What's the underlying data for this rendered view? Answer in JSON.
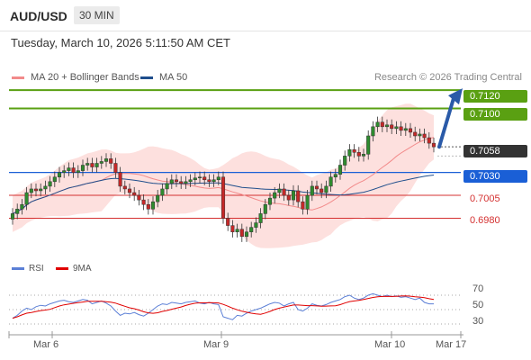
{
  "header": {
    "symbol": "AUD/USD",
    "timeframe": "30 MIN",
    "datetime": "Tuesday, March 10, 2026 5:11:50 AM CET"
  },
  "legend": {
    "ma20_label": "MA 20 + Bollinger Bands",
    "ma50_label": "MA 50",
    "ma20_color": "#f28a8a",
    "ma50_color": "#1f4e8c",
    "credit": "Research © 2026 Trading Central"
  },
  "rsi_legend": {
    "rsi_label": "RSI",
    "ma_label": "9MA",
    "rsi_color": "#5b7fd6",
    "ma_color": "#e00000"
  },
  "price_levels": [
    {
      "label": "0.7120",
      "value": 0.712,
      "kind": "resistance",
      "color": "#5aa012"
    },
    {
      "label": "0.7100",
      "value": 0.71,
      "kind": "resistance",
      "color": "#5aa012"
    },
    {
      "label": "0.7058",
      "value": 0.7058,
      "kind": "current",
      "color": "#333333"
    },
    {
      "label": "0.7030",
      "value": 0.703,
      "kind": "pivot",
      "color": "#1a5fd6"
    },
    {
      "label": "0.7005",
      "value": 0.7005,
      "kind": "support",
      "color": "#d43030"
    },
    {
      "label": "0.6980",
      "value": 0.698,
      "kind": "support",
      "color": "#d43030"
    }
  ],
  "rsi_ticks": [
    "70",
    "50",
    "30"
  ],
  "x_ticks": [
    "Mar 6",
    "Mar 9",
    "Mar 10",
    "Mar 17"
  ],
  "colors": {
    "bull": "#2e8b2e",
    "bear": "#c62828",
    "band_fill": "#fde0de",
    "arrow": "#2a5aa8"
  },
  "chart_data": {
    "type": "candlestick",
    "title": "AUD/USD",
    "timeframe": "30 MIN",
    "ylim": [
      0.6948,
      0.713
    ],
    "closes": [
      0.6985,
      0.699,
      0.6995,
      0.7008,
      0.7012,
      0.701,
      0.7012,
      0.7015,
      0.702,
      0.7025,
      0.703,
      0.7032,
      0.7035,
      0.703,
      0.7032,
      0.7038,
      0.704,
      0.7036,
      0.704,
      0.7042,
      0.7045,
      0.704,
      0.703,
      0.7015,
      0.7012,
      0.7008,
      0.7005,
      0.7,
      0.6995,
      0.699,
      0.6998,
      0.7005,
      0.7012,
      0.7018,
      0.7022,
      0.702,
      0.7018,
      0.702,
      0.7022,
      0.7024,
      0.7025,
      0.7022,
      0.702,
      0.7022,
      0.7025,
      0.698,
      0.6972,
      0.6965,
      0.6968,
      0.696,
      0.6965,
      0.697,
      0.6975,
      0.6985,
      0.6995,
      0.7002,
      0.7008,
      0.7012,
      0.7005,
      0.7,
      0.701,
      0.6998,
      0.699,
      0.7005,
      0.7015,
      0.7012,
      0.7008,
      0.7015,
      0.7025,
      0.7028,
      0.7038,
      0.7048,
      0.7055,
      0.7052,
      0.7048,
      0.705,
      0.707,
      0.708,
      0.7085,
      0.708,
      0.7082,
      0.7078,
      0.708,
      0.7076,
      0.7078,
      0.7074,
      0.707,
      0.7072,
      0.7068,
      0.7062,
      0.7058
    ],
    "ma20_closes_window": 20,
    "ma50_closes_window": 50,
    "rsi": [
      38,
      42,
      48,
      52,
      50,
      54,
      56,
      55,
      58,
      60,
      62,
      63,
      61,
      60,
      62,
      64,
      63,
      58,
      60,
      62,
      59,
      55,
      48,
      42,
      45,
      44,
      46,
      43,
      41,
      45,
      50,
      55,
      58,
      57,
      60,
      59,
      58,
      60,
      61,
      62,
      59,
      58,
      60,
      58,
      57,
      40,
      38,
      36,
      42,
      41,
      45,
      48,
      50,
      52,
      55,
      58,
      60,
      59,
      55,
      58,
      60,
      50,
      48,
      52,
      58,
      56,
      55,
      57,
      60,
      62,
      64,
      68,
      70,
      66,
      64,
      66,
      70,
      72,
      70,
      68,
      70,
      68,
      69,
      67,
      68,
      66,
      64,
      66,
      60,
      58,
      58
    ],
    "forecast_target": 0.712
  }
}
